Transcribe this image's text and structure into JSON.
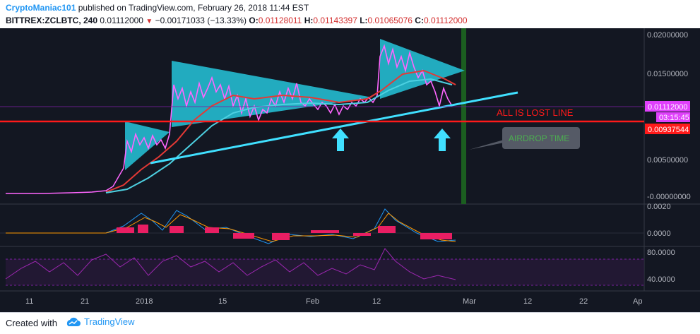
{
  "header": {
    "author": "CryptoManiac101",
    "published_text": "published on TradingView.com, February 26, 2018 11:44 EST",
    "symbol": "BITTREX:ZCLBTC, 240",
    "last": "0.01112000",
    "change": "−0.00171033 (−13.33%)",
    "o_label": "O:",
    "o_value": "0.01128011",
    "h_label": "H:",
    "h_value": "0.01143397",
    "l_label": "L:",
    "l_value": "0.01065076",
    "c_label": "C:",
    "c_value": "0.01112000"
  },
  "price_axis": {
    "ticks": [
      "0.02000000",
      "0.01500000",
      "0.00500000",
      "-0.00000000"
    ],
    "price_badge": "0.01112000",
    "countdown_badge": "03:15:45",
    "line_badge": "0.00937544"
  },
  "macd_axis": {
    "ticks": [
      "0.0020",
      "0.0000"
    ]
  },
  "rsi_axis": {
    "ticks": [
      "80.0000",
      "40.0000"
    ]
  },
  "time_axis": {
    "ticks": [
      "11",
      "21",
      "2018",
      "15",
      "Feb",
      "12",
      "Mar",
      "12",
      "22",
      "Ap"
    ]
  },
  "annotations": {
    "lost_line": "ALL IS LOST LINE",
    "airdrop": "AIRDROP TIME"
  },
  "colors": {
    "background": "#131722",
    "triangle_fill": "#26c6da",
    "candles": "#ff66ff",
    "trendline": "#40e0ff",
    "red_line": "#ff1a1a",
    "ma_fast": "#e53935",
    "ma_slow": "#4dd0e1",
    "airdrop_bar": "#1b5e20",
    "rsi_line": "#7b1fa2"
  },
  "footer": {
    "created_with": "Created with",
    "brand": "TradingView"
  }
}
